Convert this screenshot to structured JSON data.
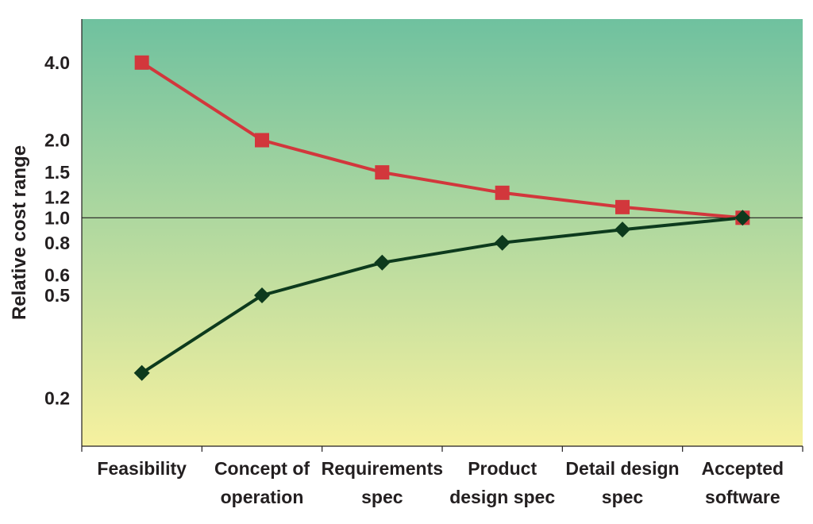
{
  "chart_data": {
    "type": "line",
    "ylabel": "Relative cost range",
    "yscale": "log",
    "ylim": [
      0.13,
      5.9
    ],
    "yticks": [
      0.2,
      0.5,
      0.6,
      0.8,
      1.0,
      1.2,
      1.5,
      2.0,
      4.0
    ],
    "ytick_labels": [
      "0.2",
      "0.5",
      "0.6",
      "0.8",
      "1.0",
      "1.2",
      "1.5",
      "2.0",
      "4.0"
    ],
    "reference_line": 1.0,
    "categories": [
      [
        "Feasibility"
      ],
      [
        "Concept of",
        "operation"
      ],
      [
        "Requirements",
        "spec"
      ],
      [
        "Product",
        "design spec"
      ],
      [
        "Detail design",
        "spec"
      ],
      [
        "Accepted",
        "software"
      ]
    ],
    "series": [
      {
        "values": [
          4.0,
          2.0,
          1.5,
          1.25,
          1.1,
          1.0
        ],
        "color": "#d2373c",
        "marker": "square"
      },
      {
        "values": [
          0.25,
          0.5,
          0.67,
          0.8,
          0.9,
          1.0
        ],
        "color": "#0d3a1d",
        "marker": "diamond"
      }
    ],
    "background_gradient": [
      "#6fc19f",
      "#f6f19f"
    ],
    "grid": false,
    "legend": "none"
  }
}
